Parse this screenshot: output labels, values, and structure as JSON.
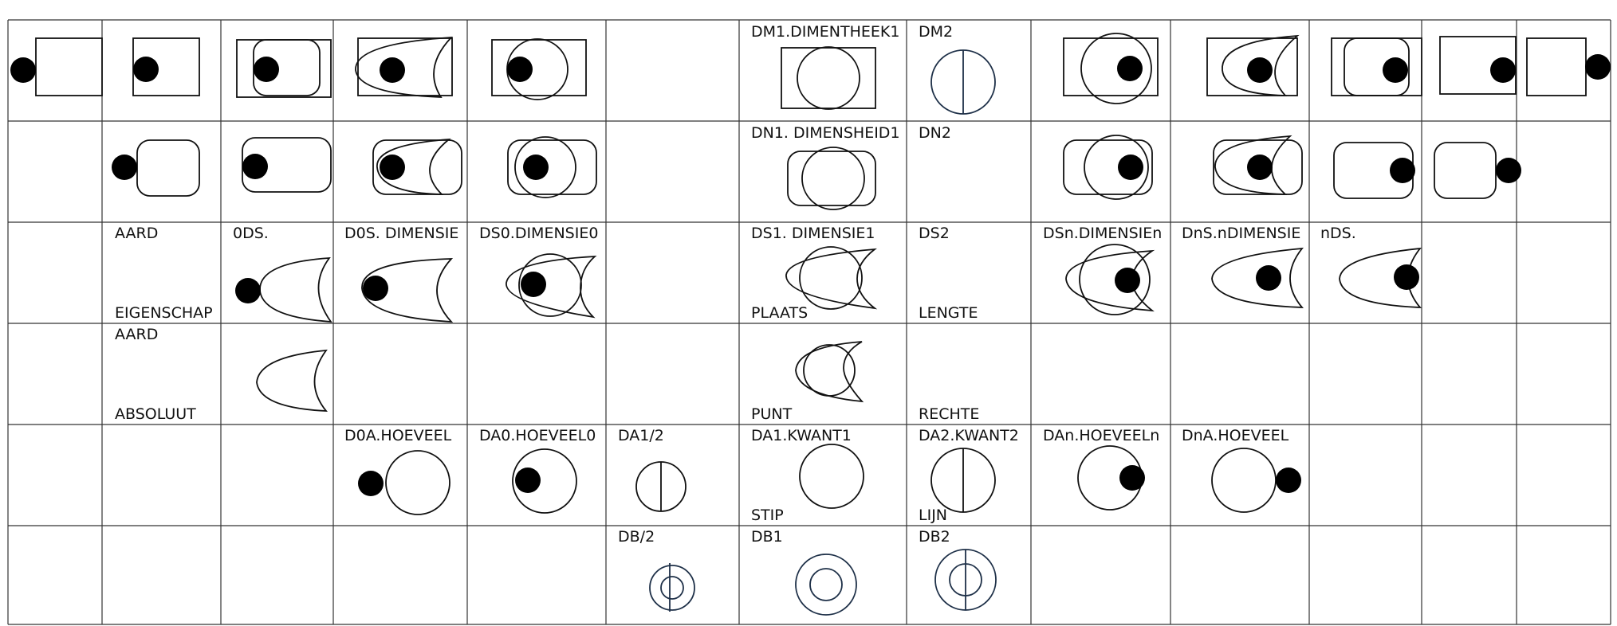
{
  "colors": {
    "line": "#111111",
    "grid": "#333333",
    "blue_symbol": "#1e3048",
    "background": "#ffffff"
  },
  "labels": {
    "dm1": "DM1.DIMENTHEEK1",
    "dm2": "DM2",
    "dn1": "DN1. DIMENSHEID1",
    "dn2": "DN2",
    "aard": "AARD",
    "eigenschap": "EIGENSCHAP",
    "ods": "0DS.",
    "d0s": "D0S. DIMENSIE",
    "ds0": "DS0.DIMENSIE0",
    "ds1": "DS1. DIMENSIE1",
    "plaats": "PLAATS",
    "ds2": "DS2",
    "lengte": "LENGTE",
    "dsn": "DSn.DIMENSIEn",
    "dns": "DnS.nDIMENSIE",
    "nds": "nDS.",
    "aard2": "AARD",
    "absoluut": "ABSOLUUT",
    "punt": "PUNT",
    "rechte": "RECHTE",
    "d0a": "D0A.HOEVEEL",
    "da0": "DA0.HOEVEEL0",
    "da_half": "DA1/2",
    "da1": "DA1.KWANT1",
    "stip": "STIP",
    "da2": "DA2.KWANT2",
    "lijn": "LIJN",
    "dan": "DAn.HOEVEELn",
    "dna": "DnA.HOEVEEL",
    "db_half": "DB/2",
    "db1": "DB1",
    "db2": "DB2"
  }
}
